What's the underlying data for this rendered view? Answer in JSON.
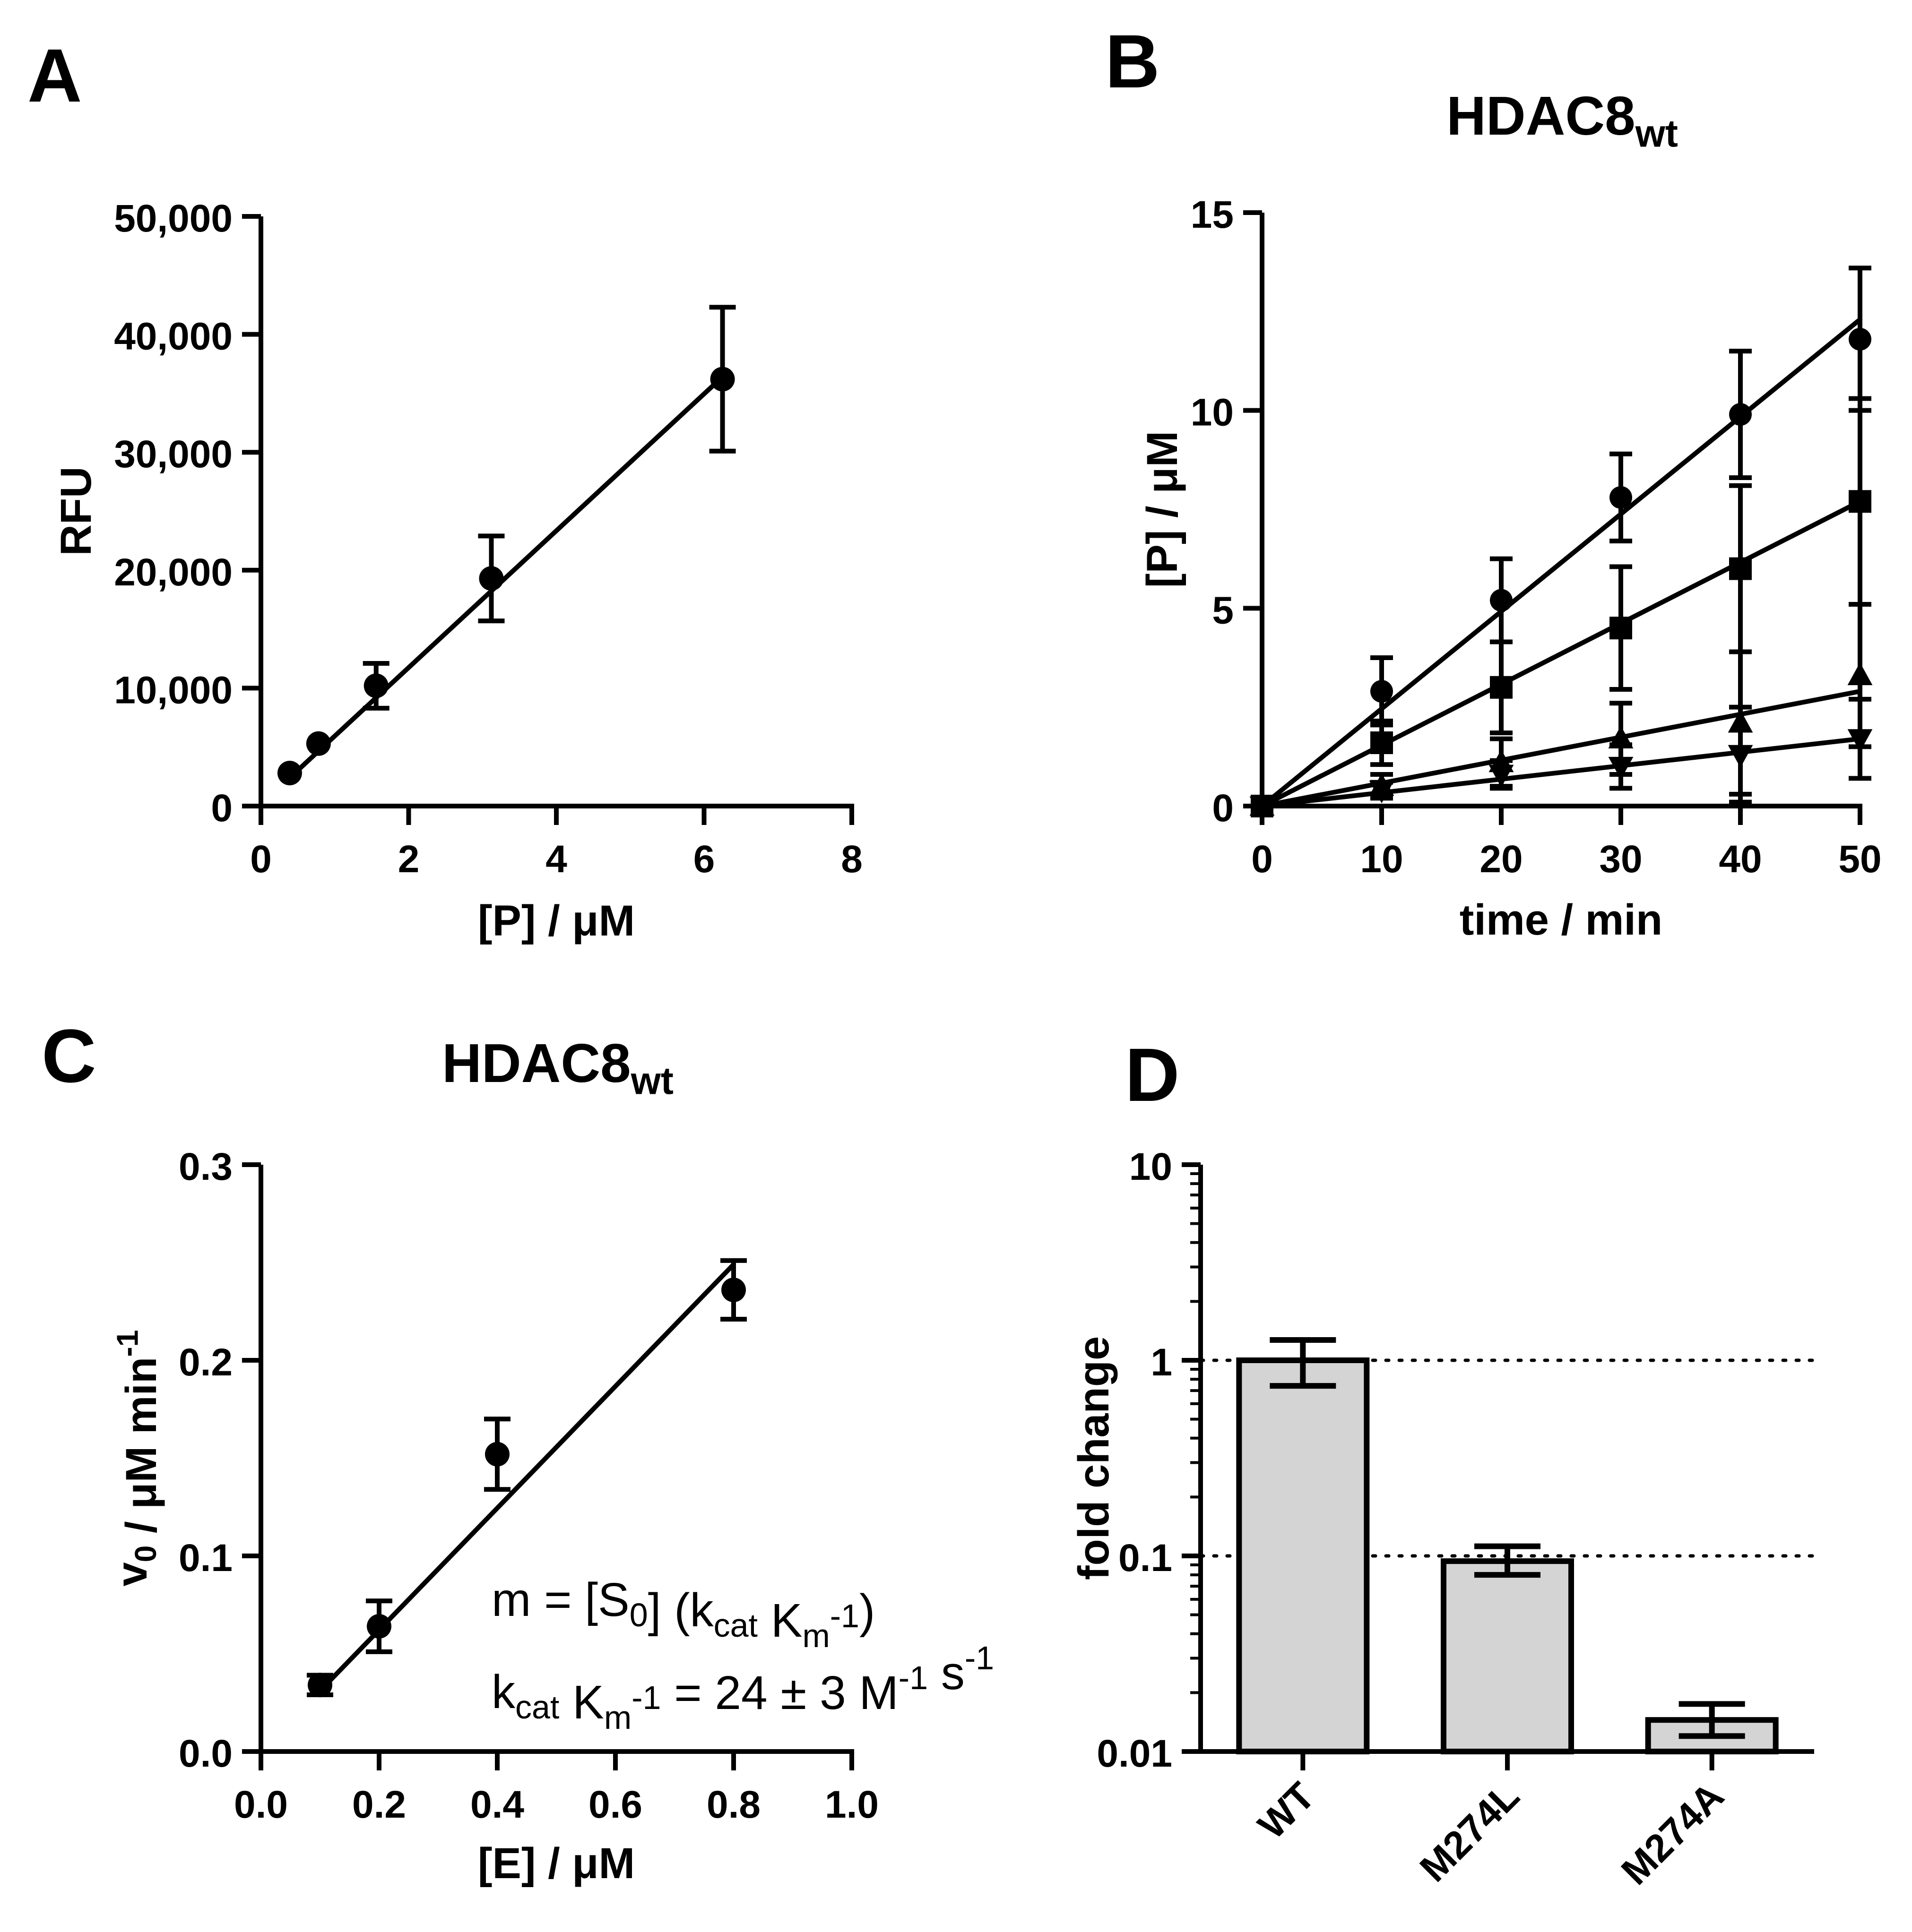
{
  "chart_data": [
    {
      "panel": "A",
      "type": "scatter",
      "title": "",
      "xlabel": "[P] / μM",
      "ylabel": "RFU",
      "xlim": [
        0,
        8
      ],
      "ylim": [
        0,
        50000
      ],
      "xticks": [
        0,
        2,
        4,
        6,
        8
      ],
      "yticks": [
        0,
        10000,
        20000,
        30000,
        40000,
        50000
      ],
      "xtick_labels": [
        "0",
        "2",
        "4",
        "6",
        "8"
      ],
      "ytick_labels": [
        "0",
        "10,000",
        "20,000",
        "30,000",
        "40,000",
        "50,000"
      ],
      "points": [
        {
          "x": 0.39,
          "y": 2800,
          "err": 0
        },
        {
          "x": 0.78,
          "y": 5300,
          "err": 0
        },
        {
          "x": 1.56,
          "y": 10200,
          "err": 1900
        },
        {
          "x": 3.12,
          "y": 19300,
          "err": 3600
        },
        {
          "x": 6.25,
          "y": 36200,
          "err": 6100
        }
      ],
      "fit_line": {
        "x": [
          0.39,
          6.25
        ],
        "y": [
          2400,
          36400
        ]
      }
    },
    {
      "panel": "B",
      "type": "scatter",
      "title": "HDAC8",
      "title_subscript": "wt",
      "xlabel": "time / min",
      "ylabel": "[P] / μM",
      "xlim": [
        0,
        50
      ],
      "ylim": [
        0,
        15
      ],
      "xticks": [
        0,
        10,
        20,
        30,
        40,
        50
      ],
      "yticks": [
        0,
        5,
        10,
        15
      ],
      "xtick_labels": [
        "0",
        "10",
        "20",
        "30",
        "40",
        "50"
      ],
      "ytick_labels": [
        "0",
        "5",
        "10",
        "15"
      ],
      "series": [
        {
          "name": "circle",
          "marker": "circle",
          "x": [
            0,
            10,
            20,
            30,
            40,
            50
          ],
          "y": [
            0,
            2.9,
            5.2,
            7.8,
            9.9,
            11.8
          ],
          "err": [
            0,
            0.85,
            1.05,
            1.1,
            1.6,
            1.8
          ],
          "fit": [
            0,
            12.3
          ]
        },
        {
          "name": "square",
          "marker": "square",
          "x": [
            0,
            10,
            20,
            30,
            40,
            50
          ],
          "y": [
            0,
            1.6,
            3.0,
            4.5,
            6.0,
            7.7
          ],
          "err": [
            0,
            0.55,
            1.15,
            1.55,
            2.1,
            2.6
          ],
          "fit": [
            0,
            7.7
          ]
        },
        {
          "name": "triangle-up",
          "marker": "triangle-up",
          "x": [
            0,
            10,
            20,
            30,
            40,
            50
          ],
          "y": [
            0,
            0.5,
            1.1,
            1.7,
            2.1,
            3.3
          ],
          "err": [
            0,
            0.3,
            0.6,
            0.9,
            1.8,
            1.8
          ],
          "fit": [
            0,
            2.9
          ]
        },
        {
          "name": "triangle-down",
          "marker": "triangle-down",
          "x": [
            0,
            10,
            20,
            30,
            40,
            50
          ],
          "y": [
            0,
            0.4,
            0.8,
            1.0,
            1.3,
            1.7
          ],
          "err": [
            0,
            0.2,
            0.35,
            0.55,
            1.2,
            1.0
          ],
          "fit": [
            0,
            1.7
          ]
        }
      ]
    },
    {
      "panel": "C",
      "type": "scatter",
      "title": "HDAC8",
      "title_subscript": "wt",
      "xlabel": "[E] / μM",
      "ylabel_main": "v",
      "ylabel_sub": "0",
      "ylabel_rest": " / μM min",
      "ylabel_sup": "-1",
      "xlim": [
        0,
        1.0
      ],
      "ylim": [
        0,
        0.3
      ],
      "xticks": [
        0,
        0.2,
        0.4,
        0.6,
        0.8,
        1.0
      ],
      "yticks": [
        0,
        0.1,
        0.2,
        0.3
      ],
      "xtick_labels": [
        "0.0",
        "0.2",
        "0.4",
        "0.6",
        "0.8",
        "1.0"
      ],
      "ytick_labels": [
        "0.0",
        "0.1",
        "0.2",
        "0.3"
      ],
      "points": [
        {
          "x": 0.1,
          "y": 0.034,
          "err": 0.005
        },
        {
          "x": 0.2,
          "y": 0.064,
          "err": 0.013
        },
        {
          "x": 0.4,
          "y": 0.152,
          "err": 0.018
        },
        {
          "x": 0.8,
          "y": 0.236,
          "err": 0.015
        }
      ],
      "fit_line": {
        "x": [
          0.1,
          0.8
        ],
        "y": [
          0.031,
          0.249
        ]
      },
      "annotation_1": {
        "parts": [
          "m = [S",
          "0",
          "] (k",
          "cat",
          " K",
          "m",
          "-1",
          ")"
        ]
      },
      "annotation_2": {
        "parts": [
          "k",
          "cat",
          " K",
          "m",
          "-1",
          " = 24 ± 3 M",
          "-1",
          " s",
          "-1"
        ]
      }
    },
    {
      "panel": "D",
      "type": "bar",
      "title": "",
      "xlabel": "",
      "ylabel": "fold change",
      "yscale": "log",
      "ylim": [
        0.01,
        10
      ],
      "yticks": [
        0.01,
        0.1,
        1,
        10
      ],
      "ytick_labels": [
        "0.01",
        "0.1",
        "1",
        "10"
      ],
      "categories": [
        "WT",
        "M274L",
        "M274A"
      ],
      "values": [
        1.0,
        0.094,
        0.0145
      ],
      "err_low": [
        0.74,
        0.08,
        0.012
      ],
      "err_high": [
        1.27,
        0.112,
        0.0175
      ],
      "reference_lines": [
        1,
        0.1
      ],
      "bar_color": "#d4d4d4"
    }
  ],
  "panel_letters": {
    "A": "A",
    "B": "B",
    "C": "C",
    "D": "D"
  },
  "colors": {
    "ink": "#000000",
    "bar_fill": "#d4d4d4"
  }
}
